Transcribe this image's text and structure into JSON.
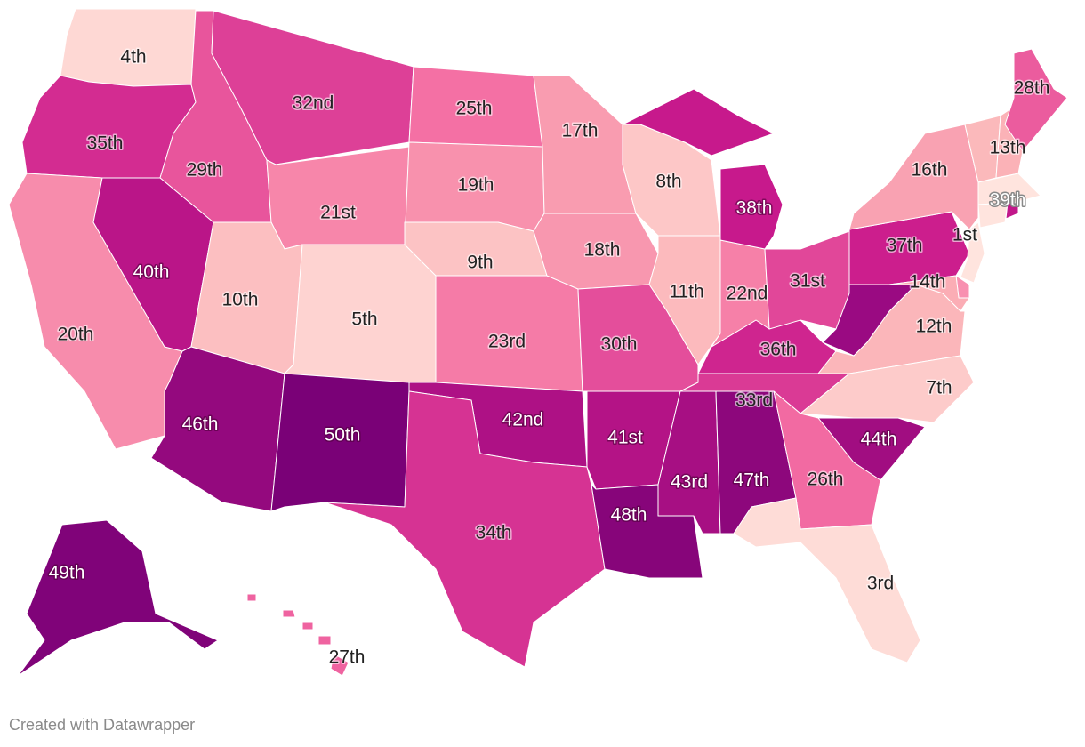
{
  "color_scale": {
    "stops": [
      "#ffe4de",
      "#fbb1b6",
      "#f46da3",
      "#c9198c",
      "#7a0177"
    ],
    "rank_min": 1,
    "rank_max": 50
  },
  "states": [
    {
      "id": "WA",
      "label": "4th",
      "rank": 4
    },
    {
      "id": "OR",
      "label": "35th",
      "rank": 35
    },
    {
      "id": "CA",
      "label": "20th",
      "rank": 20
    },
    {
      "id": "ID",
      "label": "29th",
      "rank": 29
    },
    {
      "id": "NV",
      "label": "40th",
      "rank": 40
    },
    {
      "id": "MT",
      "label": "32nd",
      "rank": 32
    },
    {
      "id": "WY",
      "label": "21st",
      "rank": 21
    },
    {
      "id": "UT",
      "label": "10th",
      "rank": 10
    },
    {
      "id": "CO",
      "label": "5th",
      "rank": 5
    },
    {
      "id": "AZ",
      "label": "46th",
      "rank": 46
    },
    {
      "id": "NM",
      "label": "50th",
      "rank": 50
    },
    {
      "id": "ND",
      "label": "25th",
      "rank": 25
    },
    {
      "id": "SD",
      "label": "19th",
      "rank": 19
    },
    {
      "id": "NE",
      "label": "9th",
      "rank": 9
    },
    {
      "id": "KS",
      "label": "23rd",
      "rank": 23
    },
    {
      "id": "OK",
      "label": "42nd",
      "rank": 42
    },
    {
      "id": "TX",
      "label": "34th",
      "rank": 34
    },
    {
      "id": "MN",
      "label": "17th",
      "rank": 17
    },
    {
      "id": "IA",
      "label": "18th",
      "rank": 18
    },
    {
      "id": "WI",
      "label": "8th",
      "rank": 8
    },
    {
      "id": "IL",
      "label": "11th",
      "rank": 11
    },
    {
      "id": "MO",
      "label": "30th",
      "rank": 30
    },
    {
      "id": "AR",
      "label": "41st",
      "rank": 41
    },
    {
      "id": "LA",
      "label": "48th",
      "rank": 48
    },
    {
      "id": "MS",
      "label": "43rd",
      "rank": 43
    },
    {
      "id": "AL",
      "label": "47th",
      "rank": 47
    },
    {
      "id": "TN",
      "label": "33rd",
      "rank": 33
    },
    {
      "id": "KY",
      "label": "36th",
      "rank": 36
    },
    {
      "id": "IN",
      "label": "22nd",
      "rank": 22
    },
    {
      "id": "OH",
      "label": "31st",
      "rank": 31
    },
    {
      "id": "MI",
      "label": "38th",
      "rank": 38
    },
    {
      "id": "PA",
      "label": "37th",
      "rank": 37
    },
    {
      "id": "NY",
      "label": "16th",
      "rank": 16
    },
    {
      "id": "VT",
      "label": "",
      "fill": "#fbb9bb"
    },
    {
      "id": "NH",
      "label": "13th",
      "rank": 13
    },
    {
      "id": "MA",
      "label": "",
      "fill": "#ffe4de"
    },
    {
      "id": "CT",
      "label": "",
      "fill": "#ffe4de"
    },
    {
      "id": "RI",
      "label": "39th",
      "rank": 39
    },
    {
      "id": "NJ",
      "label": "1st",
      "rank": 1
    },
    {
      "id": "DE",
      "label": "",
      "fill": "#f890b0"
    },
    {
      "id": "MD",
      "label": "14th",
      "rank": 14
    },
    {
      "id": "VA",
      "label": "12th",
      "rank": 12
    },
    {
      "id": "WV",
      "label": "",
      "fill": "#9a0a82"
    },
    {
      "id": "NC",
      "label": "7th",
      "rank": 7
    },
    {
      "id": "SC",
      "label": "44th",
      "rank": 44
    },
    {
      "id": "GA",
      "label": "26th",
      "rank": 26
    },
    {
      "id": "FL",
      "label": "3rd",
      "rank": 3
    },
    {
      "id": "ME",
      "label": "28th",
      "rank": 28
    },
    {
      "id": "AK",
      "label": "49th",
      "rank": 49
    },
    {
      "id": "HI",
      "label": "27th",
      "rank": 27
    }
  ],
  "footer": "Created with Datawrapper"
}
